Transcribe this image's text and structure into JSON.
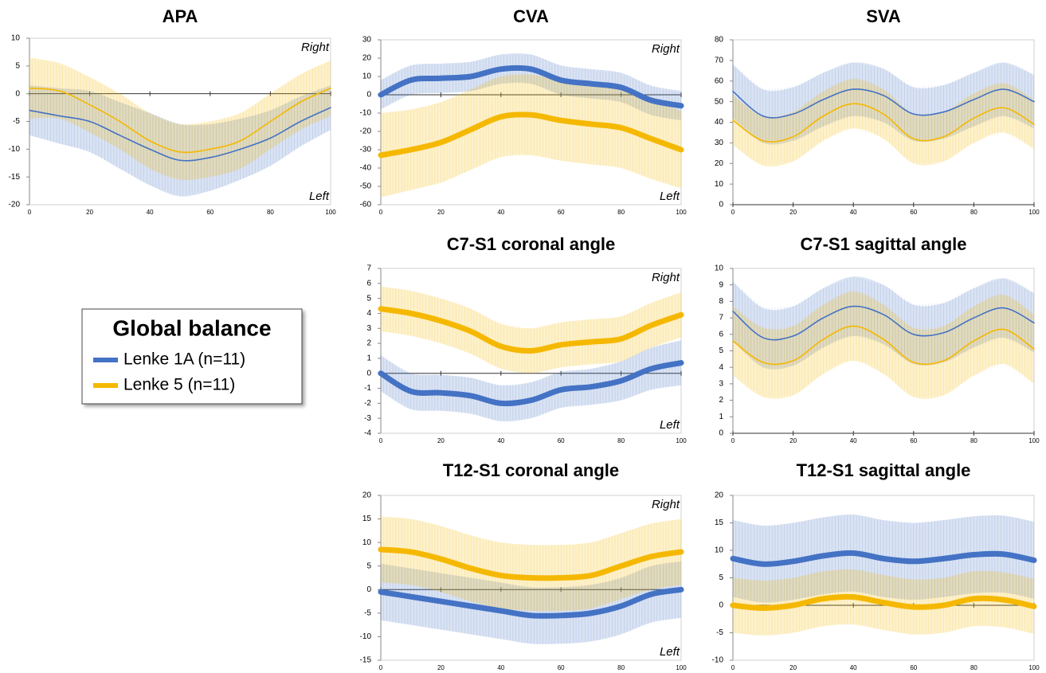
{
  "chart_data": [
    {
      "type": "line",
      "title": "APA",
      "annotations": [
        "Right",
        "Left"
      ],
      "x": [
        0,
        10,
        20,
        30,
        40,
        50,
        60,
        70,
        80,
        90,
        100
      ],
      "xlim": [
        0,
        100
      ],
      "xticks": [
        0,
        20,
        40,
        60,
        80,
        100
      ],
      "ylim": [
        -20,
        10
      ],
      "yticks": [
        -20,
        -15,
        -10,
        -5,
        0,
        5,
        10
      ],
      "series": [
        {
          "name": "Lenke 1A (n=11)",
          "color": "#4472c4",
          "values": [
            -3,
            -4,
            -5,
            -7.5,
            -10,
            -12,
            -11.5,
            -10,
            -8,
            -5,
            -2.5
          ],
          "sd": [
            4.5,
            5,
            5.5,
            6,
            6.5,
            6.5,
            6,
            5.5,
            5,
            4.5,
            4
          ]
        },
        {
          "name": "Lenke 5 (n=11)",
          "color": "#f5b800",
          "values": [
            1,
            0.5,
            -2,
            -5,
            -8.5,
            -10.5,
            -10,
            -8.5,
            -5,
            -1.5,
            1
          ],
          "sd": [
            5.5,
            5,
            5,
            5,
            5,
            5,
            5,
            5,
            5,
            5,
            5
          ]
        }
      ]
    },
    {
      "type": "line",
      "title": "CVA",
      "annotations": [
        "Right",
        "Left"
      ],
      "x": [
        0,
        10,
        20,
        30,
        40,
        50,
        60,
        70,
        80,
        90,
        100
      ],
      "xlim": [
        0,
        100
      ],
      "xticks": [
        0,
        20,
        40,
        60,
        80,
        100
      ],
      "ylim": [
        -60,
        30
      ],
      "yticks": [
        -60,
        -50,
        -40,
        -30,
        -20,
        -10,
        0,
        10,
        20,
        30
      ],
      "series": [
        {
          "name": "Lenke 1A (n=11)",
          "color": "#4472c4",
          "values": [
            0,
            8,
            9,
            10,
            14,
            14,
            8,
            6,
            4,
            -3,
            -6
          ],
          "sd": [
            8,
            8,
            8,
            8,
            8,
            8,
            8,
            8,
            8,
            8,
            8
          ]
        },
        {
          "name": "Lenke 5 (n=11)",
          "color": "#f5b800",
          "values": [
            -33,
            -30,
            -26,
            -19,
            -12,
            -11,
            -14,
            -16,
            -18,
            -24,
            -30
          ],
          "sd": [
            23,
            22,
            22,
            22,
            22,
            22,
            22,
            22,
            22,
            22,
            21
          ]
        }
      ]
    },
    {
      "type": "line",
      "title": "SVA",
      "x": [
        0,
        10,
        20,
        30,
        40,
        50,
        60,
        70,
        80,
        90,
        100
      ],
      "xlim": [
        0,
        100
      ],
      "xticks": [
        0,
        20,
        40,
        60,
        80,
        100
      ],
      "ylim": [
        0,
        80
      ],
      "yticks": [
        0,
        10,
        20,
        30,
        40,
        50,
        60,
        70,
        80
      ],
      "series": [
        {
          "name": "Lenke 1A (n=11)",
          "color": "#4472c4",
          "values": [
            55,
            43,
            44,
            51,
            56,
            53,
            44,
            45,
            51,
            56,
            50
          ],
          "sd": [
            13,
            13,
            13,
            13,
            13,
            13,
            13,
            13,
            13,
            13,
            13
          ]
        },
        {
          "name": "Lenke 5 (n=11)",
          "color": "#f5b800",
          "values": [
            41,
            31,
            33,
            43,
            49,
            44,
            32,
            33,
            42,
            47,
            39
          ],
          "sd": [
            12,
            12,
            12,
            12,
            12,
            12,
            12,
            12,
            12,
            12,
            12
          ]
        }
      ]
    },
    {
      "type": "line",
      "title": "C7-S1 coronal angle",
      "annotations": [
        "Right",
        "Left"
      ],
      "x": [
        0,
        10,
        20,
        30,
        40,
        50,
        60,
        70,
        80,
        90,
        100
      ],
      "xlim": [
        0,
        100
      ],
      "xticks": [
        0,
        20,
        40,
        60,
        80,
        100
      ],
      "ylim": [
        -4,
        7
      ],
      "yticks": [
        -4,
        -3,
        -2,
        -1,
        0,
        1,
        2,
        3,
        4,
        5,
        6,
        7
      ],
      "series": [
        {
          "name": "Lenke 1A (n=11)",
          "color": "#4472c4",
          "values": [
            0,
            -1.2,
            -1.3,
            -1.5,
            -2,
            -1.8,
            -1.1,
            -0.9,
            -0.5,
            0.3,
            0.7
          ],
          "sd": [
            1.2,
            1.2,
            1.2,
            1.2,
            1.2,
            1.2,
            1.2,
            1.2,
            1.3,
            1.4,
            1.5
          ]
        },
        {
          "name": "Lenke 5 (n=11)",
          "color": "#f5b800",
          "values": [
            4.3,
            4,
            3.5,
            2.8,
            1.8,
            1.5,
            1.9,
            2.1,
            2.3,
            3.2,
            3.9
          ],
          "sd": [
            1.5,
            1.5,
            1.5,
            1.5,
            1.5,
            1.5,
            1.5,
            1.5,
            1.5,
            1.5,
            1.5
          ]
        }
      ]
    },
    {
      "type": "line",
      "title": "C7-S1 sagittal angle",
      "x": [
        0,
        10,
        20,
        30,
        40,
        50,
        60,
        70,
        80,
        90,
        100
      ],
      "xlim": [
        0,
        100
      ],
      "xticks": [
        0,
        20,
        40,
        60,
        80,
        100
      ],
      "ylim": [
        0,
        10
      ],
      "yticks": [
        0,
        1,
        2,
        3,
        4,
        5,
        6,
        7,
        8,
        9,
        10
      ],
      "series": [
        {
          "name": "Lenke 1A (n=11)",
          "color": "#4472c4",
          "values": [
            7.4,
            5.8,
            5.9,
            7,
            7.7,
            7.2,
            6,
            6.1,
            7,
            7.6,
            6.7
          ],
          "sd": [
            1.8,
            1.8,
            1.8,
            1.8,
            1.8,
            1.8,
            1.8,
            1.8,
            1.8,
            1.8,
            1.8
          ]
        },
        {
          "name": "Lenke 5 (n=11)",
          "color": "#f5b800",
          "values": [
            5.6,
            4.3,
            4.4,
            5.7,
            6.5,
            5.7,
            4.3,
            4.4,
            5.6,
            6.3,
            5.1
          ],
          "sd": [
            2.1,
            2.1,
            2.1,
            2.1,
            2.1,
            2.1,
            2.1,
            2.1,
            2.1,
            2.1,
            2.1
          ]
        }
      ]
    },
    {
      "type": "line",
      "title": "T12-S1 coronal angle",
      "annotations": [
        "Right",
        "Left"
      ],
      "x": [
        0,
        10,
        20,
        30,
        40,
        50,
        60,
        70,
        80,
        90,
        100
      ],
      "xlim": [
        0,
        100
      ],
      "xticks": [
        0,
        20,
        40,
        60,
        80,
        100
      ],
      "ylim": [
        -15,
        20
      ],
      "yticks": [
        -15,
        -10,
        -5,
        0,
        5,
        10,
        15,
        20
      ],
      "series": [
        {
          "name": "Lenke 1A (n=11)",
          "color": "#4472c4",
          "values": [
            -0.5,
            -1.5,
            -2.5,
            -3.5,
            -4.5,
            -5.5,
            -5.5,
            -5,
            -3.5,
            -1,
            0
          ],
          "sd": [
            6,
            6,
            6,
            6,
            6,
            6,
            6,
            6,
            6,
            6,
            6
          ]
        },
        {
          "name": "Lenke 5 (n=11)",
          "color": "#f5b800",
          "values": [
            8.5,
            8,
            6.5,
            4.5,
            3,
            2.5,
            2.5,
            3,
            5,
            7,
            8
          ],
          "sd": [
            7,
            7,
            7,
            7,
            7,
            7,
            7,
            7,
            7,
            7,
            7
          ]
        }
      ]
    },
    {
      "type": "line",
      "title": "T12-S1 sagittal angle",
      "x": [
        0,
        10,
        20,
        30,
        40,
        50,
        60,
        70,
        80,
        90,
        100
      ],
      "xlim": [
        0,
        100
      ],
      "xticks": [
        0,
        20,
        40,
        60,
        80,
        100
      ],
      "ylim": [
        -10,
        20
      ],
      "yticks": [
        -10,
        -5,
        0,
        5,
        10,
        15,
        20
      ],
      "series": [
        {
          "name": "Lenke 1A (n=11)",
          "color": "#4472c4",
          "values": [
            8.5,
            7.5,
            8,
            9,
            9.5,
            8.5,
            8,
            8.5,
            9.2,
            9.3,
            8.2
          ],
          "sd": [
            7,
            7,
            7,
            7,
            7,
            7,
            7,
            7,
            7,
            7,
            7
          ]
        },
        {
          "name": "Lenke 5 (n=11)",
          "color": "#f5b800",
          "values": [
            0,
            -0.5,
            0,
            1.2,
            1.5,
            0.5,
            -0.3,
            0,
            1.2,
            1,
            -0.2
          ],
          "sd": [
            5,
            5,
            5,
            5,
            5,
            5,
            5,
            5,
            5,
            5,
            5
          ]
        }
      ]
    }
  ],
  "legend": {
    "title": "Global balance"
  }
}
